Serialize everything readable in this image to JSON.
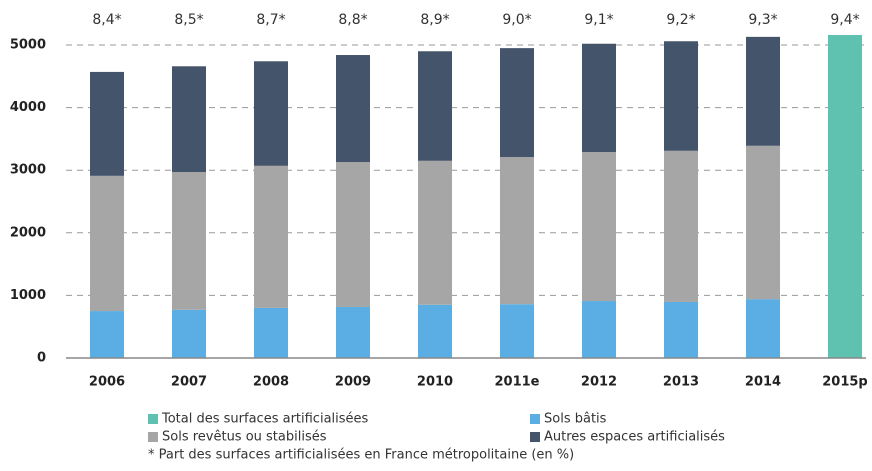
{
  "chart_data": {
    "type": "stacked_bar",
    "categories": [
      "2006",
      "2007",
      "2008",
      "2009",
      "2010",
      "2011e",
      "2012",
      "2013",
      "2014",
      "2015p"
    ],
    "series": [
      {
        "name": "Total des surfaces artificialisées",
        "color": "#5fc2b0",
        "values": [
          null,
          null,
          null,
          null,
          null,
          null,
          null,
          null,
          null,
          5160
        ]
      },
      {
        "name": "Sols bâtis",
        "color": "#5aaee3",
        "values": [
          750,
          770,
          800,
          815,
          850,
          860,
          910,
          895,
          940,
          null
        ]
      },
      {
        "name": "Sols revêtus ou stabilisés",
        "color": "#a6a6a6",
        "values": [
          2160,
          2200,
          2270,
          2315,
          2300,
          2350,
          2380,
          2415,
          2450,
          null
        ]
      },
      {
        "name": "Autres espaces artificialisés",
        "color": "#44546a",
        "values": [
          1660,
          1690,
          1670,
          1710,
          1750,
          1740,
          1730,
          1750,
          1740,
          null
        ]
      }
    ],
    "top_labels": [
      "8,4*",
      "8,5*",
      "8,7*",
      "8,8*",
      "8,9*",
      "9,0*",
      "9,1*",
      "9,2*",
      "9,3*",
      "9,4*"
    ],
    "footnote": "* Part des surfaces artificialisées en France métropolitaine (en %)",
    "ylim": [
      0,
      5000
    ],
    "yticks": [
      0,
      1000,
      2000,
      3000,
      4000,
      5000
    ],
    "grid": true
  }
}
